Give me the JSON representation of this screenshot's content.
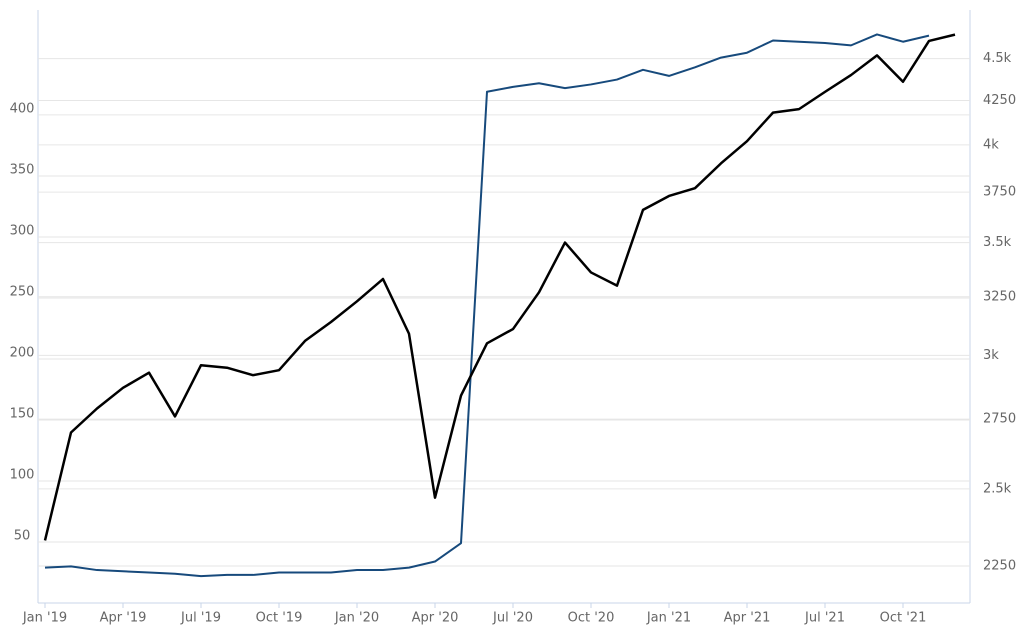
{
  "chart_data": {
    "type": "line",
    "categories": [
      "Jan '19",
      null,
      null,
      "Apr '19",
      null,
      null,
      "Jul '19",
      null,
      null,
      "Oct '19",
      null,
      null,
      "Jan '20",
      null,
      null,
      "Apr '20",
      null,
      null,
      "Jul '20",
      null,
      null,
      "Oct '20",
      null,
      null,
      "Jan '21",
      null,
      null,
      "Apr '21",
      null,
      null,
      "Jul '21",
      null,
      null,
      "Oct '21",
      null,
      null
    ],
    "series": [
      {
        "color": "#174a7c",
        "axis": "y",
        "values": [
          29,
          30,
          27,
          26,
          25,
          24,
          22,
          23,
          23,
          25,
          25,
          25,
          27,
          27,
          29,
          34,
          49,
          419,
          423,
          426,
          422,
          425,
          429,
          437,
          432,
          439,
          447,
          451,
          461,
          460,
          459,
          457,
          466,
          460,
          465,
          null
        ]
      },
      {
        "color": "#000000",
        "axis": "y2",
        "values": [
          2330,
          2700,
          2790,
          2870,
          2930,
          2760,
          2960,
          2950,
          2920,
          2940,
          3060,
          3140,
          3230,
          3330,
          3090,
          2470,
          2840,
          3050,
          3110,
          3270,
          3500,
          3360,
          3300,
          3660,
          3730,
          3770,
          3900,
          4020,
          4180,
          4200,
          4300,
          4400,
          4520,
          4360,
          4610,
          4650
        ]
      }
    ],
    "ylim": [
      0,
      486
    ],
    "yticks": [
      50,
      100,
      150,
      200,
      250,
      300,
      350,
      400
    ],
    "y2lim": [
      2139,
      4809
    ],
    "y2log": true,
    "y2ticks": [
      2250,
      {
        "value": 2500,
        "label": "2.5k"
      },
      2750,
      {
        "value": 3000,
        "label": "3k"
      },
      3250,
      {
        "value": 3500,
        "label": "3.5k"
      },
      3750,
      {
        "value": 4000,
        "label": "4k"
      },
      4250,
      {
        "value": 4500,
        "label": "4.5k"
      }
    ],
    "grid": true
  }
}
